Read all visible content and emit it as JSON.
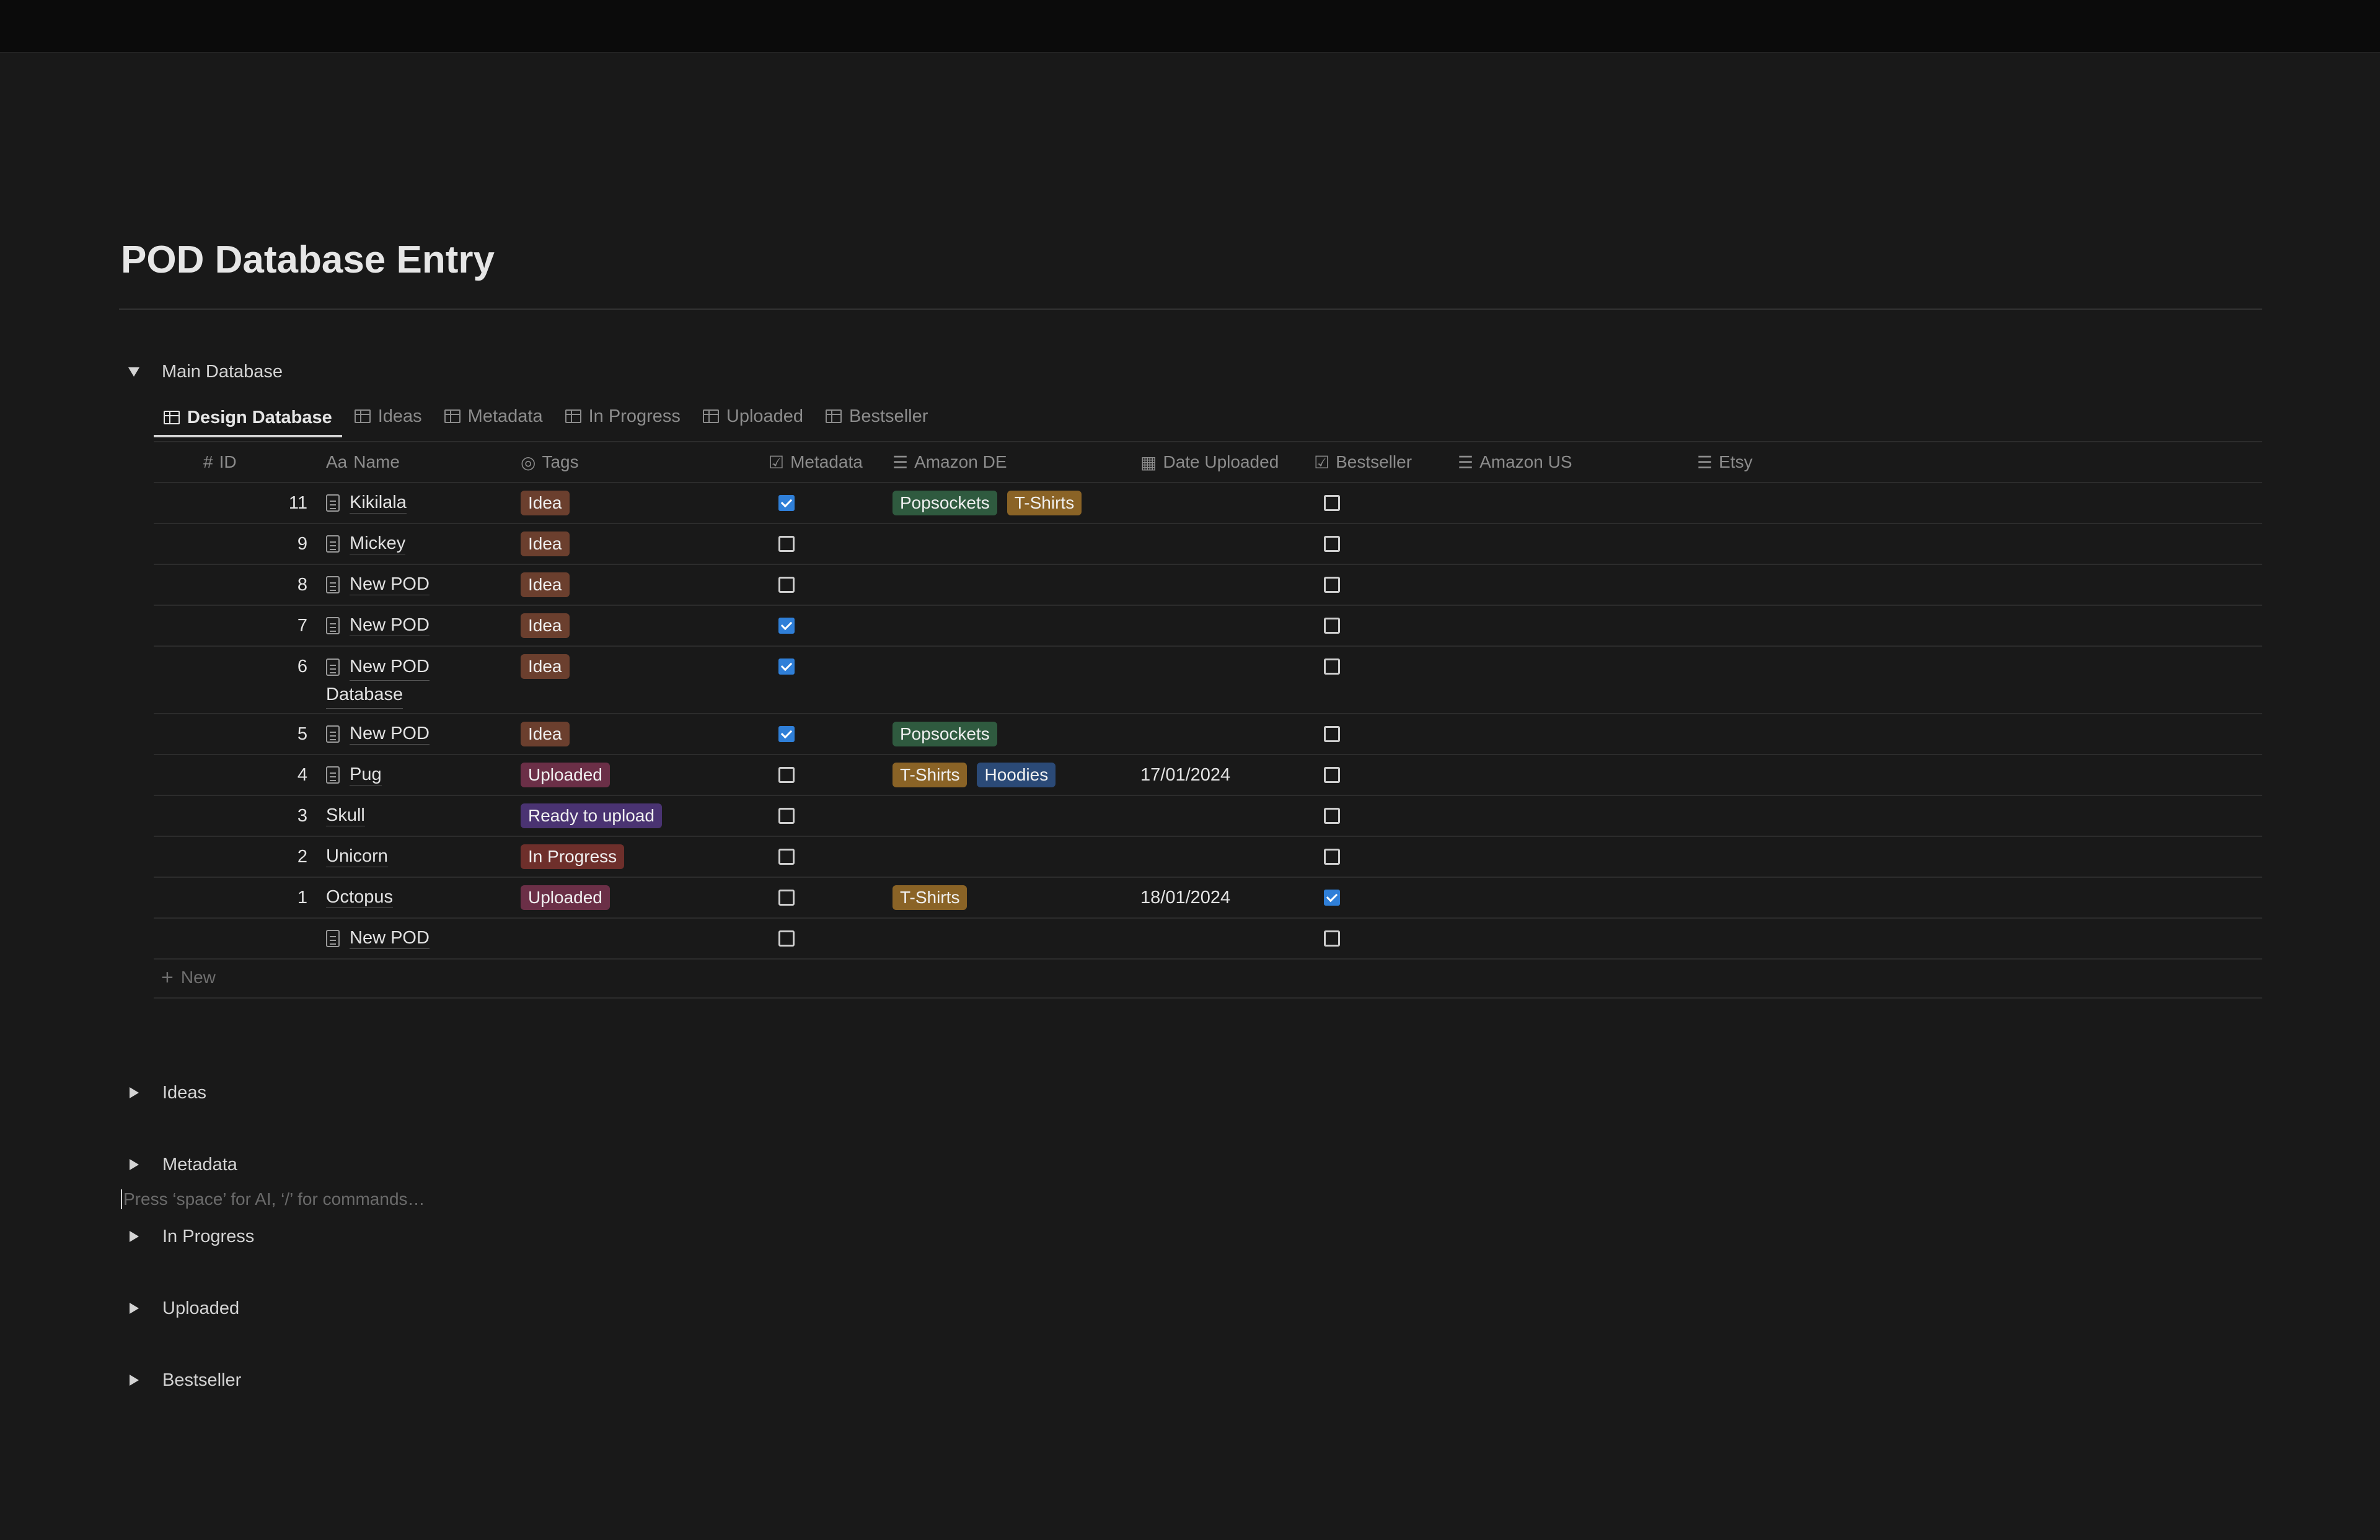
{
  "page": {
    "title": "POD Database Entry"
  },
  "main_toggle": {
    "label": "Main Database"
  },
  "tabs": [
    {
      "label": "Design Database",
      "icon": "table-icon"
    },
    {
      "label": "Ideas",
      "icon": "table-icon"
    },
    {
      "label": "Metadata",
      "icon": "table-icon"
    },
    {
      "label": "In Progress",
      "icon": "table-icon"
    },
    {
      "label": "Uploaded",
      "icon": "table-icon"
    },
    {
      "label": "Bestseller",
      "icon": "table-icon"
    }
  ],
  "columns": {
    "id": "ID",
    "name_prefix": "Aa",
    "name": "Name",
    "tags": "Tags",
    "metadata": "Metadata",
    "amazon_de": "Amazon DE",
    "date": "Date Uploaded",
    "bestseller": "Bestseller",
    "amazon_us": "Amazon US",
    "etsy": "Etsy"
  },
  "tag_colors": {
    "Idea": "#6b3f2e",
    "Uploaded": "#6b2f47",
    "Ready to upload": "#4a3372",
    "In Progress": "#6e2f2b",
    "Popsockets": "#2f5a3f",
    "T-Shirts": "#8a6326",
    "Hoodies": "#2b4a77"
  },
  "rows": [
    {
      "id": "11",
      "name": "Kikilala",
      "doc": true,
      "tag": "Idea",
      "metadata": true,
      "amazon_de": [
        "Popsockets",
        "T-Shirts"
      ],
      "date": "",
      "bestseller": false
    },
    {
      "id": "9",
      "name": "Mickey",
      "doc": true,
      "tag": "Idea",
      "metadata": false,
      "amazon_de": [],
      "date": "",
      "bestseller": false
    },
    {
      "id": "8",
      "name": "New POD",
      "doc": true,
      "tag": "Idea",
      "metadata": false,
      "amazon_de": [],
      "date": "",
      "bestseller": false
    },
    {
      "id": "7",
      "name": "New POD",
      "doc": true,
      "tag": "Idea",
      "metadata": true,
      "amazon_de": [],
      "date": "",
      "bestseller": false
    },
    {
      "id": "6",
      "name": "New POD",
      "name_line2": "Database",
      "doc": true,
      "tag": "Idea",
      "metadata": true,
      "amazon_de": [],
      "date": "",
      "bestseller": false
    },
    {
      "id": "5",
      "name": "New POD",
      "doc": true,
      "tag": "Idea",
      "metadata": true,
      "amazon_de": [
        "Popsockets"
      ],
      "date": "",
      "bestseller": false
    },
    {
      "id": "4",
      "name": "Pug",
      "doc": true,
      "tag": "Uploaded",
      "metadata": false,
      "amazon_de": [
        "T-Shirts",
        "Hoodies"
      ],
      "date": "17/01/2024",
      "bestseller": false
    },
    {
      "id": "3",
      "name": "Skull",
      "doc": false,
      "tag": "Ready to upload",
      "metadata": false,
      "amazon_de": [],
      "date": "",
      "bestseller": false
    },
    {
      "id": "2",
      "name": "Unicorn",
      "doc": false,
      "tag": "In Progress",
      "metadata": false,
      "amazon_de": [],
      "date": "",
      "bestseller": false
    },
    {
      "id": "1",
      "name": "Octopus",
      "doc": false,
      "tag": "Uploaded",
      "metadata": false,
      "amazon_de": [
        "T-Shirts"
      ],
      "date": "18/01/2024",
      "bestseller": true
    },
    {
      "id": "",
      "name": "New POD",
      "doc": true,
      "tag": "",
      "metadata": false,
      "amazon_de": [],
      "date": "",
      "bestseller": false
    }
  ],
  "new_row_label": "New",
  "sections": [
    "Ideas",
    "Metadata",
    "In Progress",
    "Uploaded",
    "Bestseller"
  ],
  "editor_placeholder": "Press ‘space’ for AI, ‘/’ for commands…"
}
